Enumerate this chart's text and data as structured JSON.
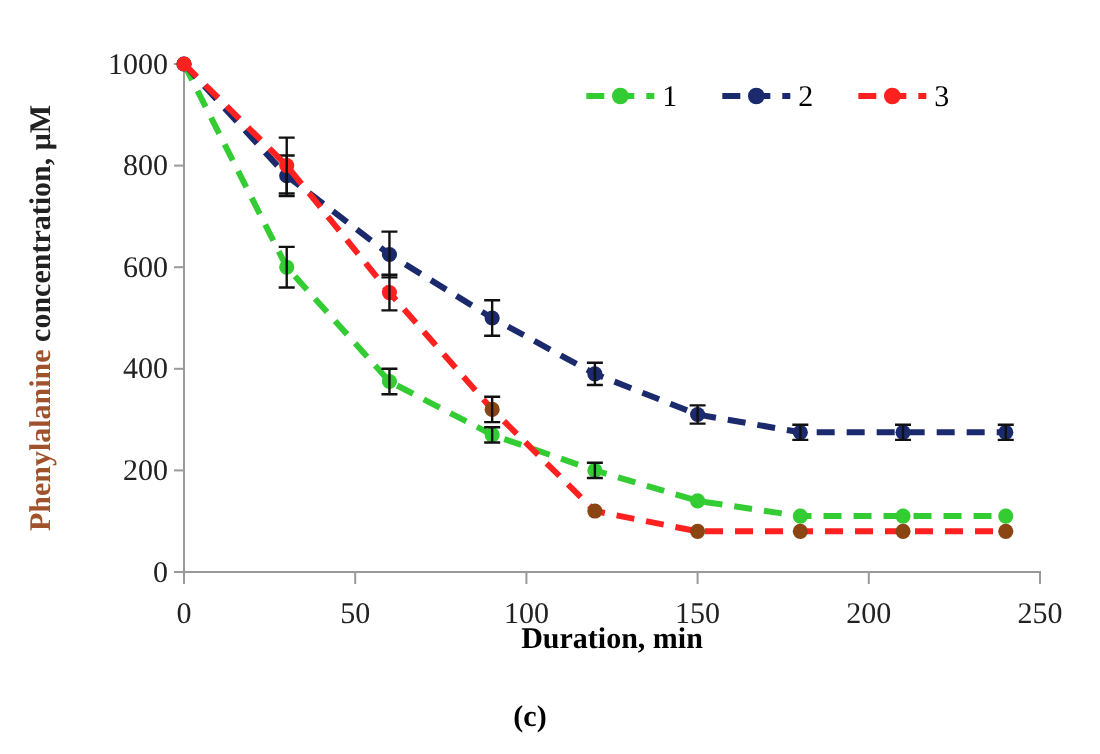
{
  "chart_data": {
    "type": "line",
    "xlabel": "Duration, min",
    "ylabel": "Phenylalanine concentration, μM",
    "annotations": [
      "(c)"
    ],
    "x": [
      0,
      30,
      60,
      90,
      120,
      150,
      180,
      210,
      240
    ],
    "xlim": [
      0,
      250
    ],
    "xticks": [
      0,
      50,
      100,
      150,
      200,
      250
    ],
    "ylim": [
      0,
      1000
    ],
    "yticks": [
      0,
      200,
      400,
      600,
      800,
      1000
    ],
    "grid": false,
    "legend": "top right",
    "marker": "circle",
    "line_style": "dashed",
    "series": [
      {
        "name": "1",
        "color": "#33cc33",
        "values": [
          1000,
          600,
          375,
          270,
          200,
          140,
          110,
          110,
          110
        ],
        "errors": [
          null,
          40,
          25,
          15,
          15,
          null,
          null,
          null,
          null
        ]
      },
      {
        "name": "2",
        "color": "#1a2a6c",
        "values": [
          1000,
          780,
          625,
          500,
          390,
          310,
          275,
          275,
          275
        ],
        "errors": [
          null,
          40,
          45,
          35,
          22,
          18,
          15,
          15,
          15
        ]
      },
      {
        "name": "3",
        "color": "#ff2020",
        "colors": [
          "#ff2020",
          "#ff2020",
          "#ff2020",
          "#8b4513",
          "#8b4513",
          "#8b4513",
          "#8b4513",
          "#8b4513",
          "#8b4513"
        ],
        "values": [
          1000,
          800,
          550,
          320,
          120,
          80,
          80,
          80,
          80
        ],
        "errors": [
          null,
          55,
          35,
          25,
          null,
          null,
          null,
          null,
          null
        ]
      }
    ]
  }
}
